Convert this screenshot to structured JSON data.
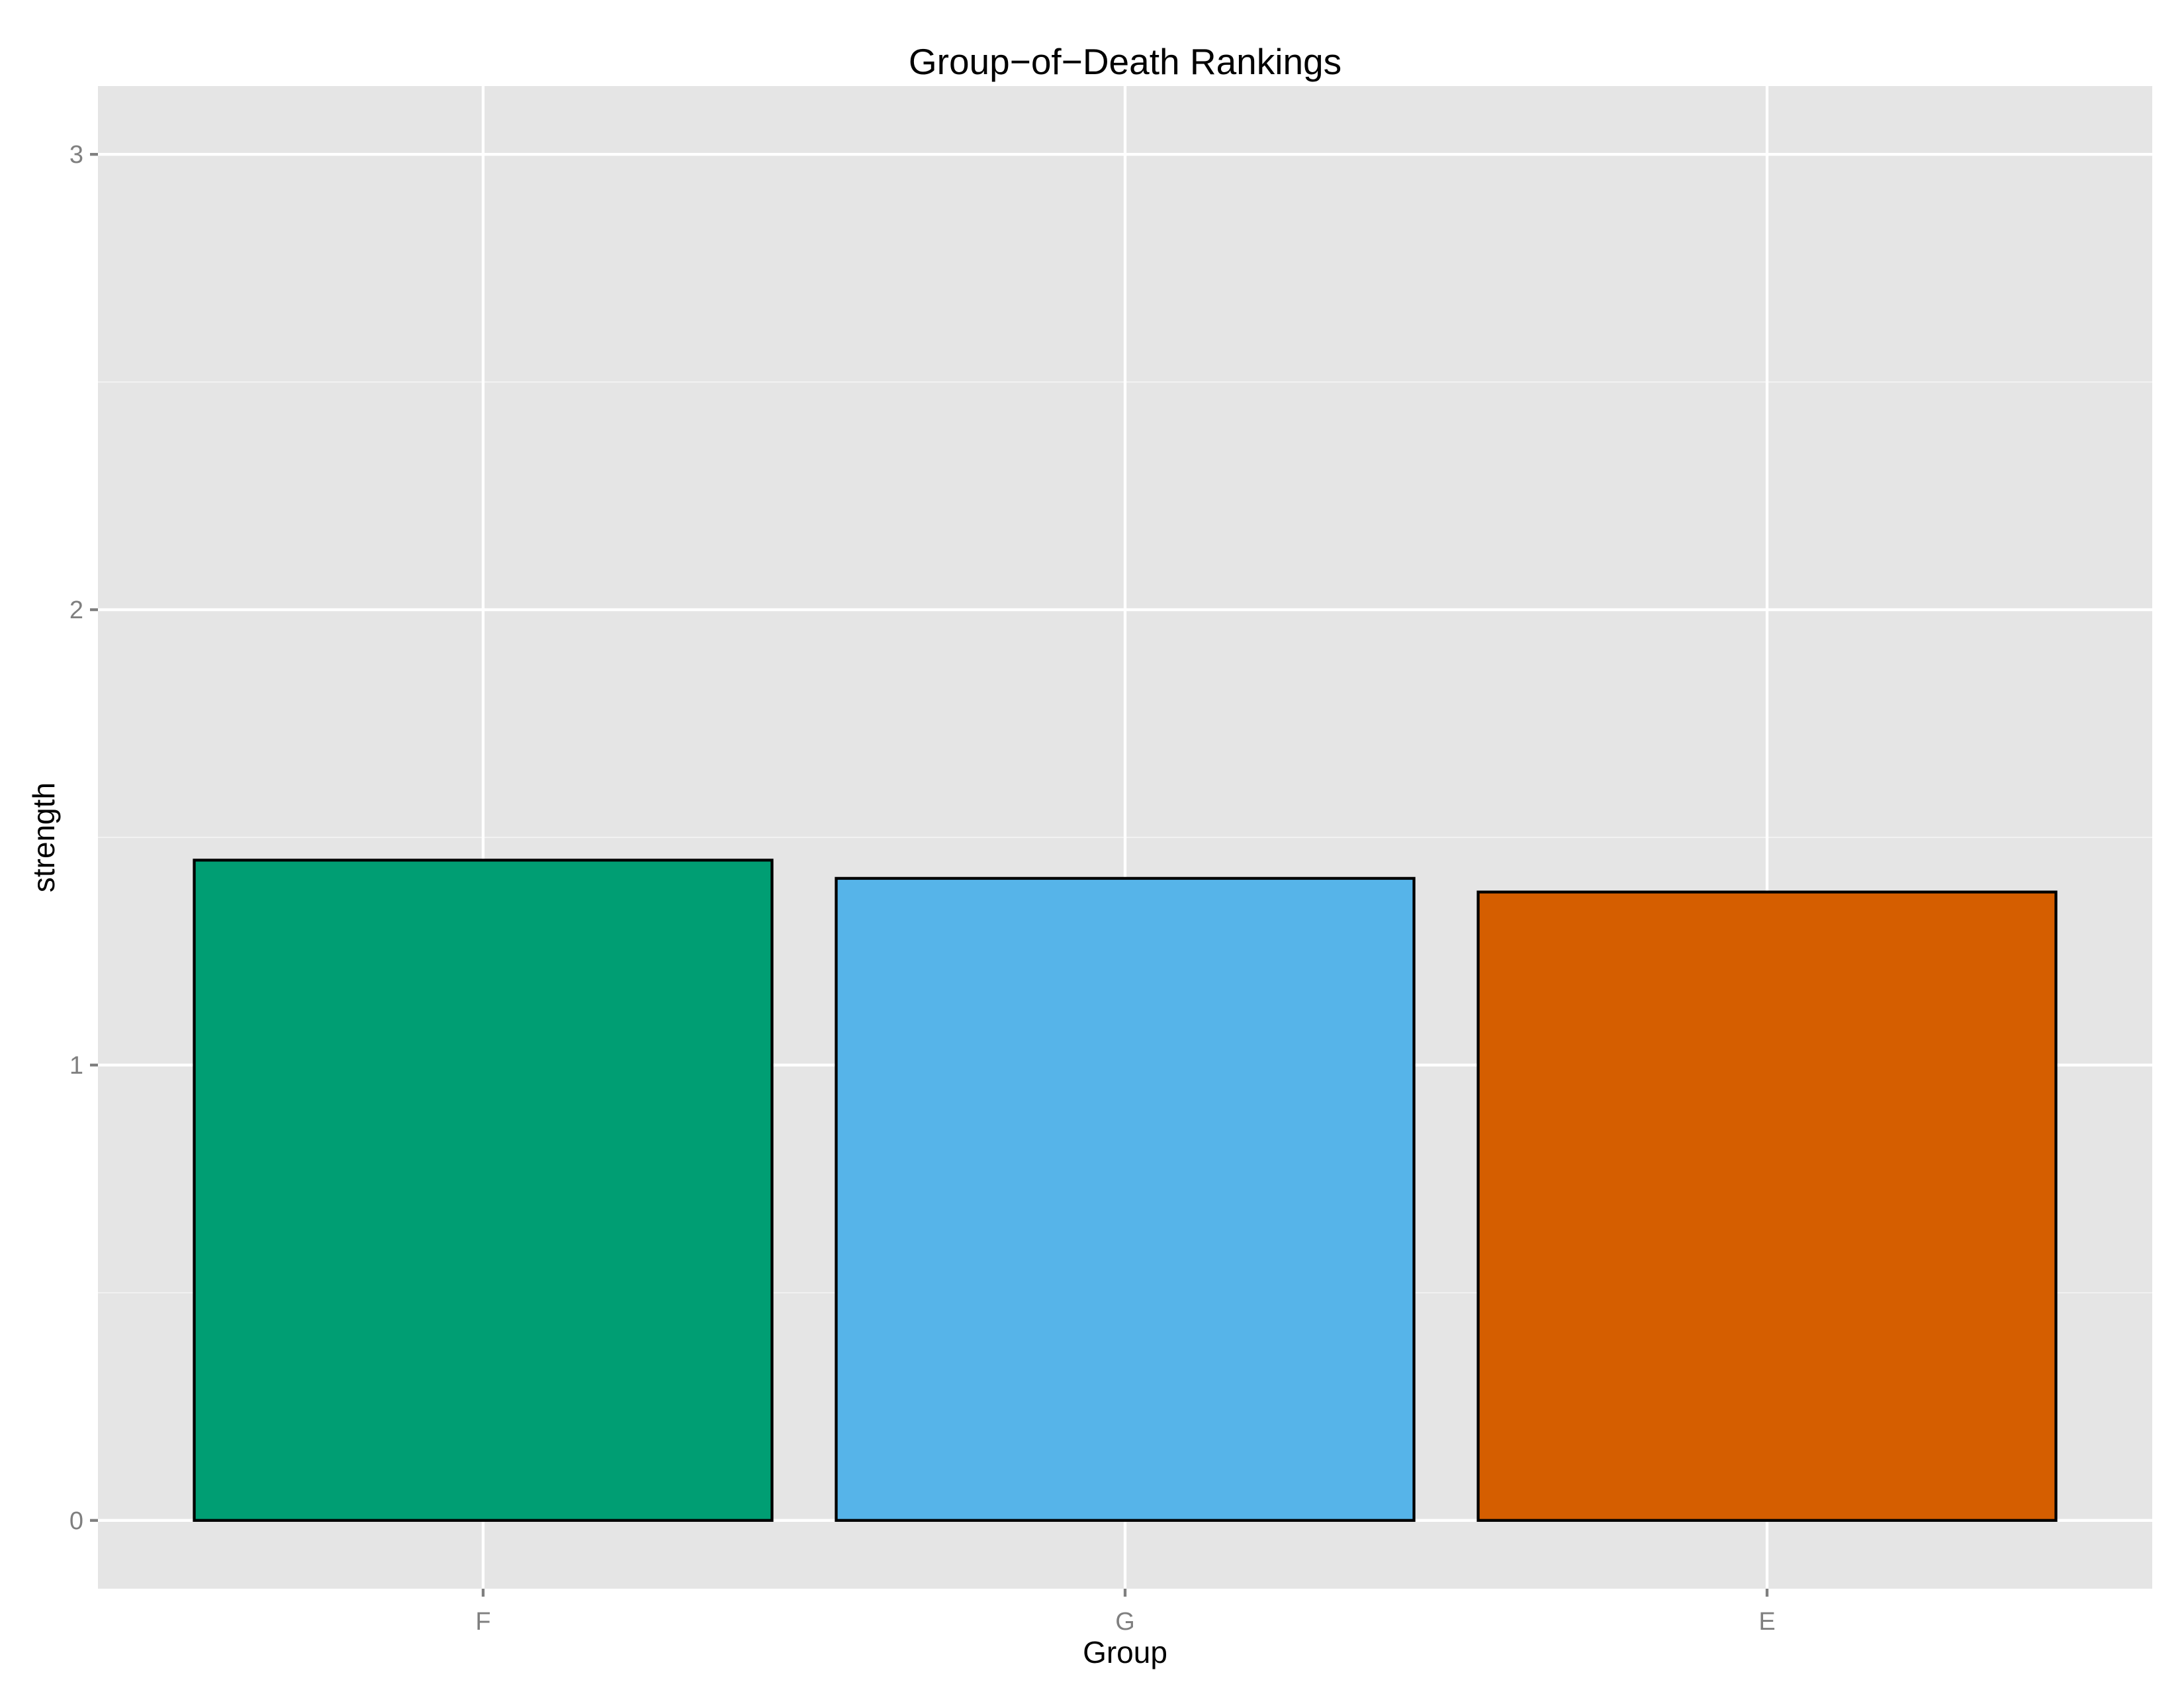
{
  "chart_data": {
    "type": "bar",
    "title": "Group−of−Death Rankings",
    "xlabel": "Group",
    "ylabel": "strength",
    "categories": [
      "F",
      "G",
      "E"
    ],
    "values": [
      1.45,
      1.41,
      1.38
    ],
    "bar_colors": [
      "#009E73",
      "#56B4E9",
      "#D55E00"
    ],
    "yticks": [
      "0",
      "1",
      "2",
      "3"
    ],
    "ylim": [
      -0.15,
      3.15
    ],
    "grid": true,
    "panel_background": "#e5e5e5"
  }
}
